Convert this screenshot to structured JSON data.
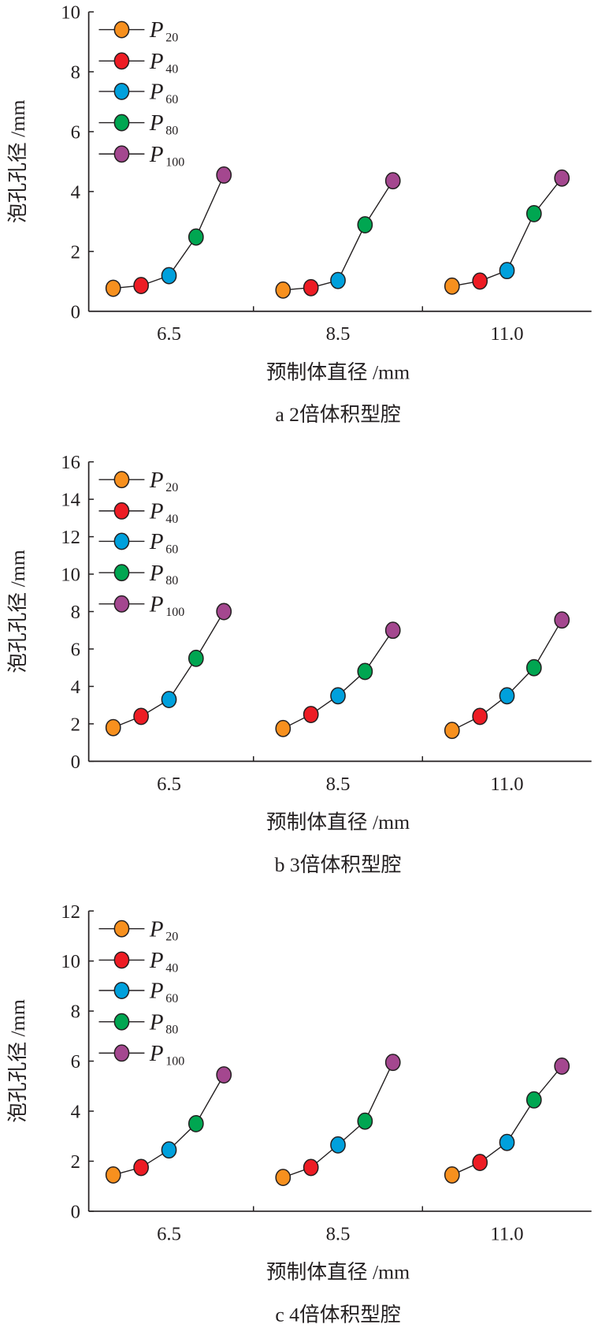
{
  "colors": {
    "P20": "#f7901e",
    "P40": "#ed1c24",
    "P60": "#00a0dc",
    "P80": "#00a651",
    "P100": "#a4478f",
    "axis": "#231f20"
  },
  "chart_data": [
    {
      "type": "line",
      "title": "a  2倍体积型腔",
      "xlabel": "预制体直径 /mm",
      "ylabel": "泡孔孔径 /mm",
      "categories": [
        "6.5",
        "8.5",
        "11.0"
      ],
      "ylim": [
        0,
        10
      ],
      "yticks": [
        0,
        2,
        4,
        6,
        8,
        10
      ],
      "legend_position": "top-left",
      "series": [
        {
          "name": "P",
          "sub": "20",
          "key": "P20",
          "values": [
            0.77,
            0.71,
            0.84
          ]
        },
        {
          "name": "P",
          "sub": "40",
          "key": "P40",
          "values": [
            0.86,
            0.79,
            1.01
          ]
        },
        {
          "name": "P",
          "sub": "60",
          "key": "P60",
          "values": [
            1.19,
            1.03,
            1.36
          ]
        },
        {
          "name": "P",
          "sub": "80",
          "key": "P80",
          "values": [
            2.48,
            2.89,
            3.26
          ]
        },
        {
          "name": "P",
          "sub": "100",
          "key": "P100",
          "values": [
            4.55,
            4.36,
            4.45
          ]
        }
      ]
    },
    {
      "type": "line",
      "title": "b  3倍体积型腔",
      "xlabel": "预制体直径 /mm",
      "ylabel": "泡孔孔径 /mm",
      "categories": [
        "6.5",
        "8.5",
        "11.0"
      ],
      "ylim": [
        0,
        16
      ],
      "yticks": [
        0,
        2,
        4,
        6,
        8,
        10,
        12,
        14,
        16
      ],
      "legend_position": "top-left",
      "series": [
        {
          "name": "P",
          "sub": "20",
          "key": "P20",
          "values": [
            1.8,
            1.75,
            1.65
          ]
        },
        {
          "name": "P",
          "sub": "40",
          "key": "P40",
          "values": [
            2.4,
            2.5,
            2.4
          ]
        },
        {
          "name": "P",
          "sub": "60",
          "key": "P60",
          "values": [
            3.3,
            3.5,
            3.5
          ]
        },
        {
          "name": "P",
          "sub": "80",
          "key": "P80",
          "values": [
            5.5,
            4.8,
            5.0
          ]
        },
        {
          "name": "P",
          "sub": "100",
          "key": "P100",
          "values": [
            8.0,
            7.0,
            7.55
          ]
        }
      ]
    },
    {
      "type": "line",
      "title": "c  4倍体积型腔",
      "xlabel": "预制体直径 /mm",
      "ylabel": "泡孔孔径 /mm",
      "categories": [
        "6.5",
        "8.5",
        "11.0"
      ],
      "ylim": [
        0,
        12
      ],
      "yticks": [
        0,
        2,
        4,
        6,
        8,
        10,
        12
      ],
      "legend_position": "top-left",
      "series": [
        {
          "name": "P",
          "sub": "20",
          "key": "P20",
          "values": [
            1.45,
            1.35,
            1.45
          ]
        },
        {
          "name": "P",
          "sub": "40",
          "key": "P40",
          "values": [
            1.75,
            1.75,
            1.95
          ]
        },
        {
          "name": "P",
          "sub": "60",
          "key": "P60",
          "values": [
            2.45,
            2.65,
            2.75
          ]
        },
        {
          "name": "P",
          "sub": "80",
          "key": "P80",
          "values": [
            3.5,
            3.6,
            4.45
          ]
        },
        {
          "name": "P",
          "sub": "100",
          "key": "P100",
          "values": [
            5.45,
            5.95,
            5.8
          ]
        }
      ]
    }
  ]
}
